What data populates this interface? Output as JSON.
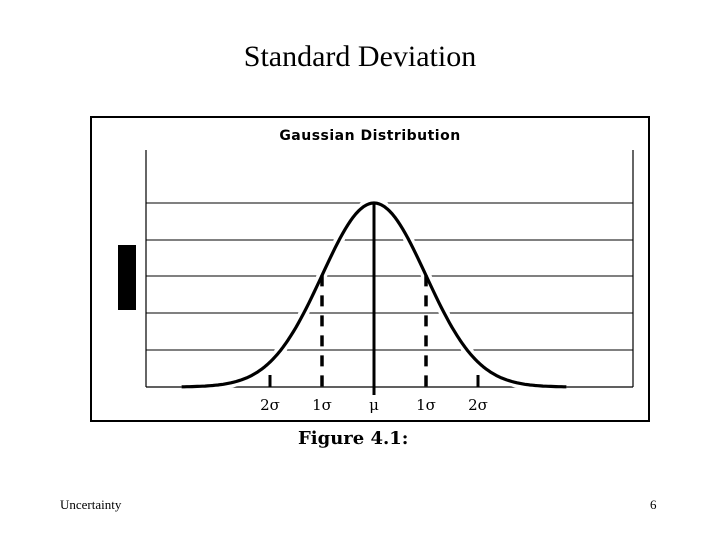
{
  "slide": {
    "title": "Standard Deviation",
    "footer_left": "Uncertainty",
    "page_number": "6"
  },
  "figure": {
    "caption": "Figure 4.1:"
  },
  "chart_data": {
    "type": "line",
    "title": "Gaussian Distribution",
    "xlabel": "",
    "ylabel": "",
    "x_range_sigma": [
      -3.7,
      3.7
    ],
    "ylim": [
      0,
      1
    ],
    "grid": true,
    "legend": "none",
    "markers": [
      {
        "sigma": -2,
        "label": "2σ",
        "style": "short"
      },
      {
        "sigma": -1,
        "label": "1σ",
        "style": "dashed"
      },
      {
        "sigma": 0,
        "label": "μ",
        "style": "solid"
      },
      {
        "sigma": 1,
        "label": "1σ",
        "style": "dashed"
      },
      {
        "sigma": 2,
        "label": "2σ",
        "style": "short"
      }
    ],
    "line_color": "#000000"
  }
}
